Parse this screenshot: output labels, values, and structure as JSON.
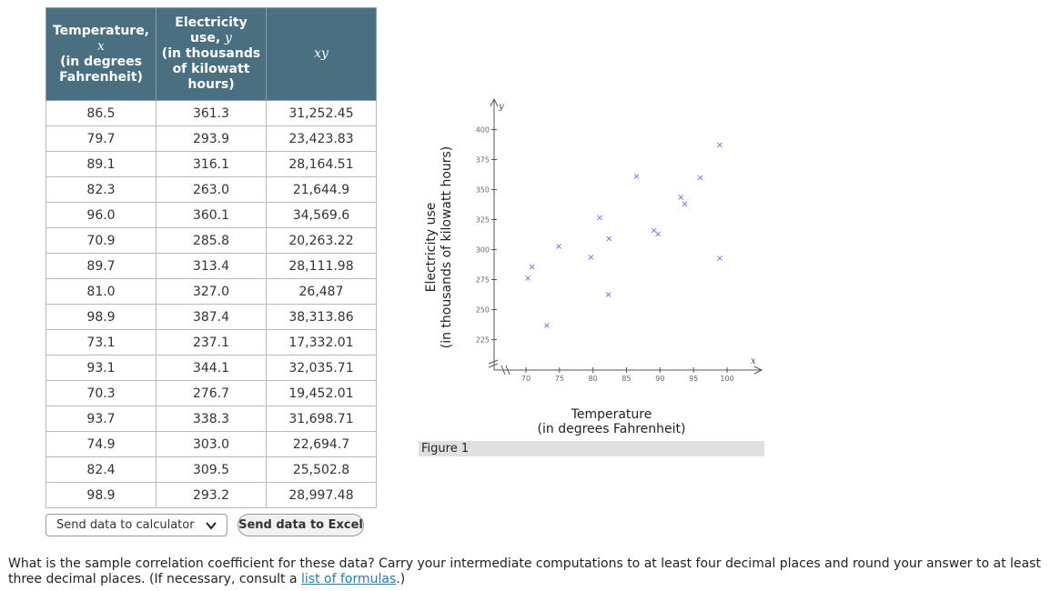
{
  "table": {
    "headers": {
      "x_line1": "Temperature,",
      "x_var": "x",
      "x_line2": "(in degrees",
      "x_line3": "Fahrenheit)",
      "y_line1": "Electricity",
      "y_line2": "use,",
      "y_var": "y",
      "y_line3": "(in thousands",
      "y_line4": "of kilowatt",
      "y_line5": "hours)",
      "xy": "xy"
    },
    "rows": [
      {
        "x": "86.5",
        "y": "361.3",
        "xy": "31,252.45"
      },
      {
        "x": "79.7",
        "y": "293.9",
        "xy": "23,423.83"
      },
      {
        "x": "89.1",
        "y": "316.1",
        "xy": "28,164.51"
      },
      {
        "x": "82.3",
        "y": "263.0",
        "xy": "21,644.9"
      },
      {
        "x": "96.0",
        "y": "360.1",
        "xy": "34,569.6"
      },
      {
        "x": "70.9",
        "y": "285.8",
        "xy": "20,263.22"
      },
      {
        "x": "89.7",
        "y": "313.4",
        "xy": "28,111.98"
      },
      {
        "x": "81.0",
        "y": "327.0",
        "xy": "26,487"
      },
      {
        "x": "98.9",
        "y": "387.4",
        "xy": "38,313.86"
      },
      {
        "x": "73.1",
        "y": "237.1",
        "xy": "17,332.01"
      },
      {
        "x": "93.1",
        "y": "344.1",
        "xy": "32,035.71"
      },
      {
        "x": "70.3",
        "y": "276.7",
        "xy": "19,452.01"
      },
      {
        "x": "93.7",
        "y": "338.3",
        "xy": "31,698.71"
      },
      {
        "x": "74.9",
        "y": "303.0",
        "xy": "22,694.7"
      },
      {
        "x": "82.4",
        "y": "309.5",
        "xy": "25,502.8"
      },
      {
        "x": "98.9",
        "y": "293.2",
        "xy": "28,997.48"
      }
    ]
  },
  "controls": {
    "calculator_select": "Send data to calculator",
    "excel_button": "Send data to Excel"
  },
  "chart_data": {
    "type": "scatter",
    "x": [
      86.5,
      79.7,
      89.1,
      82.3,
      96.0,
      70.9,
      89.7,
      81.0,
      98.9,
      73.1,
      93.1,
      70.3,
      93.7,
      74.9,
      82.4,
      98.9
    ],
    "y": [
      361.3,
      293.9,
      316.1,
      263.0,
      360.1,
      285.8,
      313.4,
      327.0,
      387.4,
      237.1,
      344.1,
      276.7,
      338.3,
      303.0,
      309.5,
      293.2
    ],
    "xlabel_line1": "Temperature",
    "xlabel_line2": "(in degrees Fahrenheit)",
    "ylabel_line1": "Electricity use",
    "ylabel_line2": "(in thousands of kilowatt hours)",
    "x_var": "x",
    "y_var": "y",
    "xlim": [
      70,
      100
    ],
    "ylim": [
      225,
      400
    ],
    "x_ticks": [
      70,
      75,
      80,
      85,
      90,
      95,
      100
    ],
    "y_ticks": [
      225,
      250,
      275,
      300,
      325,
      350,
      375,
      400
    ],
    "marker": "×",
    "marker_color": "#6a6ae0",
    "axis_break": true,
    "grid": false
  },
  "figure_caption": "Figure 1",
  "question": {
    "text": "What is the sample correlation coefficient for these data? Carry your intermediate computations to at least four decimal places and round your answer to at least three decimal places. (If necessary, consult a ",
    "link": "list of formulas",
    "end": ".)"
  }
}
